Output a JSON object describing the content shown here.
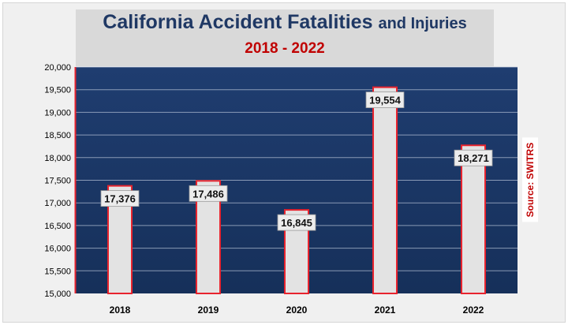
{
  "chart_data": {
    "type": "bar",
    "title": "California Accident Fatalities",
    "title_suffix": "and Injuries",
    "subtitle": "2018 - 2022",
    "categories": [
      "2018",
      "2019",
      "2020",
      "2021",
      "2022"
    ],
    "values": [
      17376,
      17486,
      16845,
      19554,
      18271
    ],
    "data_labels": [
      "17,376",
      "17,486",
      "16,845",
      "19,554",
      "18,271"
    ],
    "ylim": [
      15000,
      20000
    ],
    "yticks": [
      15000,
      15500,
      16000,
      16500,
      17000,
      17500,
      18000,
      18500,
      19000,
      19500,
      20000
    ],
    "ytick_labels": [
      "15,000",
      "15,500",
      "16,000",
      "16,500",
      "17,000",
      "17,500",
      "18,000",
      "18,500",
      "19,000",
      "19,500",
      "20,000"
    ],
    "grid": true,
    "legend": "none",
    "source_note": "Source: SWITRS",
    "colors": {
      "plot_background": "#1b3665",
      "bar_fill": "#e3e3e3",
      "bar_outline": "#e8242e",
      "title": "#1f3864",
      "subtitle": "#c00000"
    }
  }
}
